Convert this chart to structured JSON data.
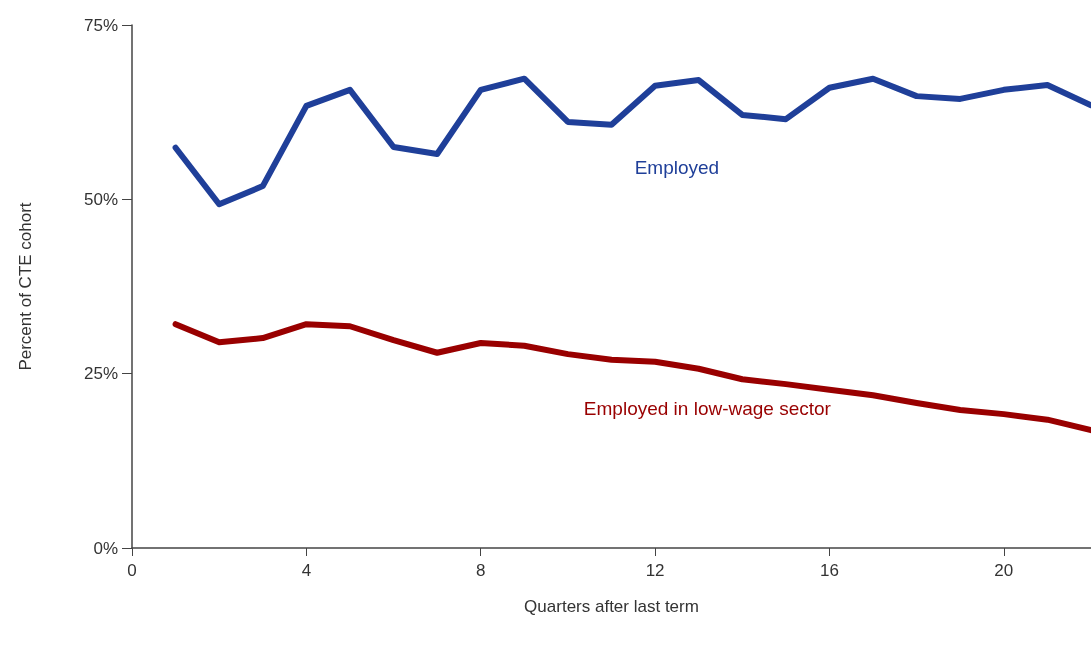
{
  "chart_data": {
    "type": "line",
    "xlabel": "Quarters after last term",
    "ylabel": "Percent of CTE cohort",
    "x": [
      1,
      2,
      3,
      4,
      5,
      6,
      7,
      8,
      9,
      10,
      11,
      12,
      13,
      14,
      15,
      16,
      17,
      18,
      19,
      20,
      21,
      22
    ],
    "series": [
      {
        "name": "Employed",
        "color": "#1f3f99",
        "values": [
          57.4,
          49.3,
          51.9,
          63.4,
          65.7,
          57.5,
          56.5,
          65.7,
          67.3,
          61.1,
          60.7,
          66.3,
          67.1,
          62.1,
          61.5,
          66.0,
          67.3,
          64.8,
          64.4,
          65.7,
          66.4,
          63.5
        ]
      },
      {
        "name": "Employed in low-wage sector",
        "color": "#990000",
        "values": [
          32.1,
          29.5,
          30.1,
          32.1,
          31.8,
          29.8,
          28.0,
          29.4,
          29.0,
          27.8,
          27.0,
          26.7,
          25.7,
          24.2,
          23.5,
          22.7,
          21.9,
          20.8,
          19.8,
          19.2,
          18.4,
          16.9
        ]
      }
    ],
    "xlim": [
      0,
      22
    ],
    "xticks": [
      0,
      4,
      8,
      12,
      16,
      20
    ],
    "ylim": [
      0,
      75
    ],
    "yticks": [
      {
        "value": 0,
        "label": "0%"
      },
      {
        "value": 25,
        "label": "25%"
      },
      {
        "value": 50,
        "label": "50%"
      },
      {
        "value": 75,
        "label": "75%"
      }
    ],
    "grid": false,
    "legend": false,
    "marker": "none",
    "line_style": "solid"
  }
}
